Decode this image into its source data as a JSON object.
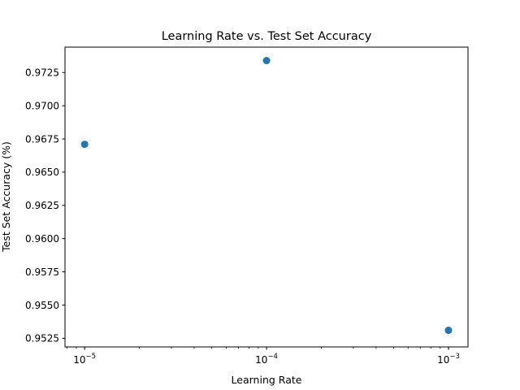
{
  "chart_data": {
    "type": "scatter",
    "title": "Learning Rate vs. Test Set Accuracy",
    "xlabel": "Learning Rate",
    "ylabel": "Test Set Accuracy (%)",
    "x_scale": "log",
    "xlim": [
      7.8e-06,
      0.00128
    ],
    "ylim": [
      0.95185,
      0.97441
    ],
    "x_ticks": [
      {
        "value": 1e-05,
        "base": "10",
        "exponent": "−5"
      },
      {
        "value": 0.0001,
        "base": "10",
        "exponent": "−4"
      },
      {
        "value": 0.001,
        "base": "10",
        "exponent": "−3"
      }
    ],
    "y_ticks": [
      {
        "value": 0.9525,
        "label": "0.9525"
      },
      {
        "value": 0.955,
        "label": "0.9550"
      },
      {
        "value": 0.9575,
        "label": "0.9575"
      },
      {
        "value": 0.96,
        "label": "0.9600"
      },
      {
        "value": 0.9625,
        "label": "0.9625"
      },
      {
        "value": 0.965,
        "label": "0.9650"
      },
      {
        "value": 0.9675,
        "label": "0.9675"
      },
      {
        "value": 0.97,
        "label": "0.9700"
      },
      {
        "value": 0.9725,
        "label": "0.9725"
      }
    ],
    "points": [
      {
        "x": 1e-05,
        "y": 0.9671
      },
      {
        "x": 0.0001,
        "y": 0.9734
      },
      {
        "x": 0.001,
        "y": 0.9531
      }
    ],
    "marker_color": "#1f77b4",
    "grid": false,
    "legend": "none"
  }
}
